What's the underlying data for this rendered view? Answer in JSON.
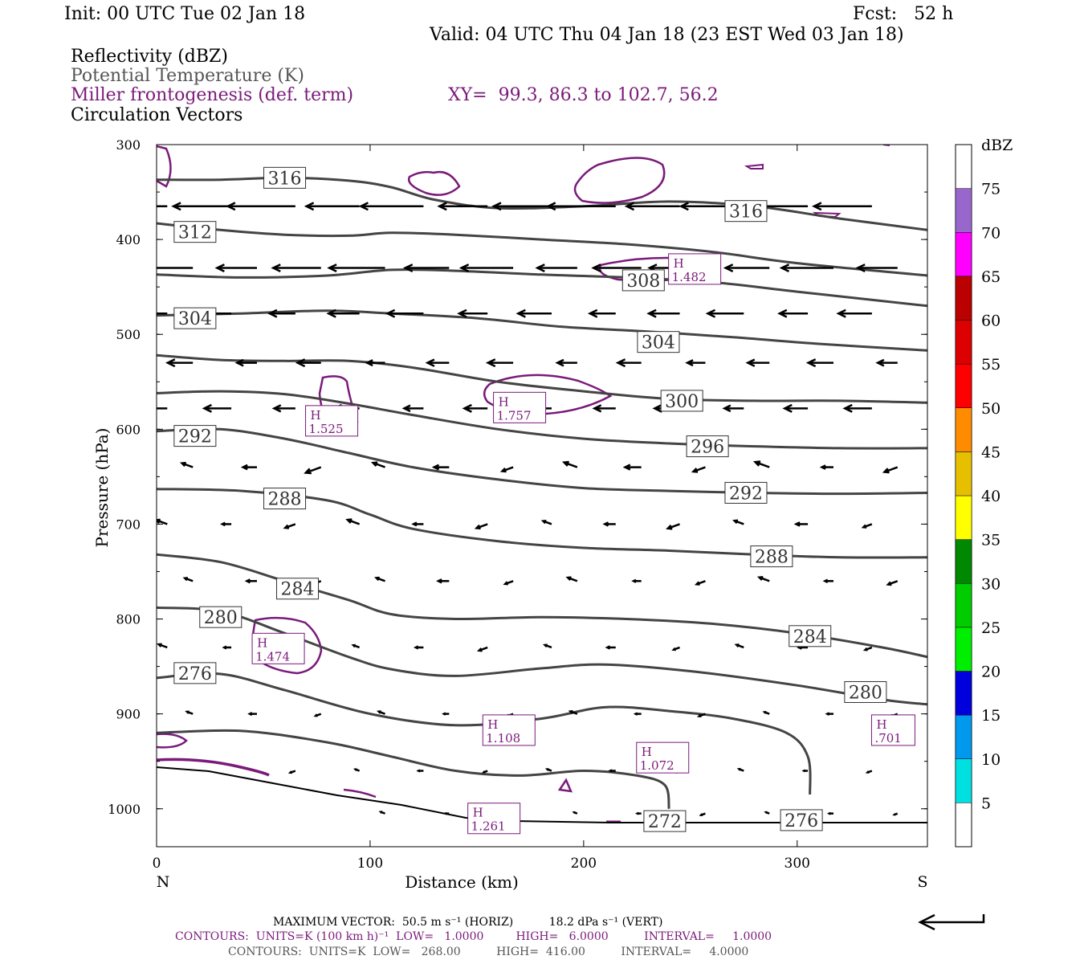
{
  "header": {
    "init": "Init: 00 UTC Tue 02 Jan 18",
    "fcst": "Fcst:   52 h",
    "valid": "Valid: 04 UTC Thu 04 Jan 18 (23 EST Wed 03 Jan 18)",
    "field1": "Reflectivity (dBZ)",
    "field2": "Potential Temperature (K)",
    "field3": "Miller frontogenesis (def. term)",
    "xy": "XY=  99.3, 86.3 to 102.7, 56.2",
    "field4": "Circulation Vectors"
  },
  "colors": {
    "theta": "#444444",
    "fronto": "#7a1a7a",
    "vector": "#000000"
  },
  "chart_data": {
    "type": "line",
    "xlabel": "Distance (km)",
    "ylabel": "Pressure (hPa)",
    "xlim": [
      0,
      361
    ],
    "ylim": [
      1040,
      300
    ],
    "x_ticks": [
      "0",
      "100",
      "200",
      "300"
    ],
    "y_ticks": [
      "300",
      "400",
      "500",
      "600",
      "700",
      "800",
      "900",
      "1000"
    ],
    "x_tick_values": [
      0,
      100,
      200,
      300
    ],
    "y_tick_values": [
      300,
      400,
      500,
      600,
      700,
      800,
      900,
      1000
    ],
    "left_end_label": "N",
    "right_end_label": "S",
    "theta_contours": [
      {
        "label": "316",
        "label_pos": [
          60,
          335
        ],
        "x": [
          0,
          30,
          60,
          90,
          110,
          130,
          160,
          200,
          240,
          280,
          320,
          361
        ],
        "y": [
          337,
          337,
          335,
          338,
          345,
          358,
          367,
          365,
          360,
          365,
          378,
          390
        ]
      },
      {
        "label": "316",
        "label_pos": [
          276,
          370
        ],
        "x": [
          0,
          30,
          60,
          90,
          110,
          130,
          160,
          200,
          240,
          280,
          320,
          361
        ],
        "y": [
          337,
          337,
          335,
          338,
          345,
          358,
          367,
          365,
          360,
          365,
          378,
          390
        ]
      },
      {
        "label": "312",
        "label_pos": [
          18,
          392
        ],
        "x": [
          0,
          30,
          60,
          90,
          110,
          140,
          180,
          220,
          260,
          300,
          361
        ],
        "y": [
          383,
          390,
          395,
          396,
          393,
          395,
          400,
          405,
          413,
          425,
          438
        ]
      },
      {
        "label": "308",
        "label_pos": [
          228,
          443
        ],
        "x": [
          0,
          40,
          80,
          110,
          140,
          180,
          220,
          260,
          300,
          361
        ],
        "y": [
          437,
          440,
          438,
          432,
          433,
          437,
          440,
          445,
          455,
          470
        ]
      },
      {
        "label": "304",
        "label_pos": [
          18,
          483
        ],
        "x": [
          0,
          40,
          80,
          110,
          150,
          190,
          230,
          270,
          310,
          361
        ],
        "y": [
          480,
          478,
          475,
          478,
          483,
          492,
          497,
          503,
          510,
          517
        ]
      },
      {
        "label": "304",
        "label_pos": [
          235,
          508
        ],
        "x": [
          0,
          40,
          80,
          110,
          150,
          190,
          230,
          270,
          310,
          361
        ],
        "y": [
          480,
          478,
          475,
          478,
          483,
          492,
          497,
          503,
          510,
          517
        ]
      },
      {
        "label": "300",
        "label_pos": [
          246,
          570
        ],
        "x": [
          0,
          30,
          60,
          90,
          120,
          160,
          200,
          240,
          280,
          320,
          361
        ],
        "y": [
          522,
          527,
          528,
          528,
          535,
          550,
          560,
          568,
          570,
          570,
          572
        ]
      },
      {
        "label": "296",
        "label_pos": [
          258,
          618
        ],
        "x": [
          0,
          30,
          60,
          90,
          120,
          160,
          200,
          240,
          280,
          320,
          361
        ],
        "y": [
          562,
          560,
          563,
          573,
          585,
          600,
          610,
          615,
          618,
          620,
          620
        ]
      },
      {
        "label": "292",
        "label_pos": [
          18,
          607
        ],
        "x": [
          0,
          30,
          60,
          90,
          120,
          160,
          200,
          240,
          280,
          320,
          361
        ],
        "y": [
          602,
          600,
          610,
          625,
          640,
          653,
          662,
          665,
          667,
          668,
          667
        ]
      },
      {
        "label": "292",
        "label_pos": [
          276,
          667
        ],
        "x": [
          0,
          30,
          60,
          90,
          120,
          160,
          200,
          240,
          280,
          320,
          361
        ],
        "y": [
          602,
          600,
          610,
          625,
          640,
          653,
          662,
          665,
          667,
          668,
          667
        ]
      },
      {
        "label": "288",
        "label_pos": [
          60,
          673
        ],
        "x": [
          0,
          40,
          80,
          100,
          120,
          160,
          200,
          240,
          280,
          320,
          361
        ],
        "y": [
          663,
          665,
          675,
          690,
          705,
          718,
          725,
          728,
          732,
          735,
          735
        ]
      },
      {
        "label": "288",
        "label_pos": [
          288,
          734
        ],
        "x": [
          0,
          40,
          80,
          100,
          120,
          160,
          200,
          240,
          280,
          320,
          361
        ],
        "y": [
          663,
          665,
          675,
          690,
          705,
          718,
          725,
          728,
          732,
          735,
          735
        ]
      },
      {
        "label": "284",
        "label_pos": [
          66,
          768
        ],
        "x": [
          0,
          30,
          60,
          90,
          110,
          140,
          180,
          220,
          260,
          300,
          340,
          361
        ],
        "y": [
          732,
          740,
          760,
          780,
          795,
          800,
          798,
          800,
          805,
          815,
          830,
          840
        ]
      },
      {
        "label": "284",
        "label_pos": [
          306,
          818
        ],
        "x": [
          0,
          30,
          60,
          90,
          110,
          140,
          180,
          220,
          260,
          300,
          340,
          361
        ],
        "y": [
          732,
          740,
          760,
          780,
          795,
          800,
          798,
          800,
          805,
          815,
          830,
          840
        ]
      },
      {
        "label": "280",
        "label_pos": [
          30,
          798
        ],
        "x": [
          0,
          30,
          60,
          90,
          110,
          140,
          180,
          210,
          250,
          300,
          340,
          361
        ],
        "y": [
          788,
          792,
          815,
          840,
          853,
          860,
          852,
          848,
          855,
          870,
          885,
          890
        ]
      },
      {
        "label": "280",
        "label_pos": [
          332,
          877
        ],
        "x": [
          0,
          30,
          60,
          90,
          110,
          140,
          180,
          210,
          250,
          300,
          340,
          361
        ],
        "y": [
          788,
          792,
          815,
          840,
          853,
          860,
          852,
          848,
          855,
          870,
          885,
          890
        ]
      },
      {
        "label": "276",
        "label_pos": [
          18,
          857
        ],
        "x": [
          0,
          30,
          60,
          100,
          140,
          180,
          210,
          240,
          270,
          295,
          305,
          306
        ],
        "y": [
          862,
          858,
          875,
          900,
          912,
          905,
          893,
          897,
          905,
          920,
          945,
          985
        ]
      },
      {
        "label": "276",
        "label_pos": [
          302,
          1012
        ],
        "x": [
          0,
          30,
          60,
          100,
          140,
          180,
          210,
          240,
          270,
          295,
          305,
          306
        ],
        "y": [
          862,
          858,
          875,
          900,
          912,
          905,
          893,
          897,
          905,
          920,
          945,
          985
        ]
      },
      {
        "label": "272",
        "label_pos": [
          238,
          1013
        ],
        "x": [
          0,
          40,
          80,
          110,
          140,
          170,
          200,
          225,
          238,
          240
        ],
        "y": [
          920,
          918,
          930,
          945,
          960,
          965,
          960,
          965,
          975,
          1000
        ]
      }
    ],
    "fronto_maxima": [
      {
        "label": "H",
        "value": "1.482",
        "x": 252,
        "y": 432
      },
      {
        "label": "H",
        "value": "1.757",
        "x": 170,
        "y": 578
      },
      {
        "label": "H",
        "value": "1.525",
        "x": 82,
        "y": 592
      },
      {
        "label": "H",
        "value": "1.474",
        "x": 57,
        "y": 832
      },
      {
        "label": "H",
        "value": "1.108",
        "x": 165,
        "y": 918
      },
      {
        "label": "H",
        "value": "1.072",
        "x": 237,
        "y": 947
      },
      {
        "label": "H",
        "value": ".701",
        "x": 345,
        "y": 918
      },
      {
        "label": "H",
        "value": "1.261",
        "x": 158,
        "y": 1011
      }
    ],
    "colorbar": {
      "unit": "dBZ",
      "levels": [
        "5",
        "10",
        "15",
        "20",
        "25",
        "30",
        "35",
        "40",
        "45",
        "50",
        "55",
        "60",
        "65",
        "70",
        "75"
      ],
      "colors": [
        "#00e0e0",
        "#0099ee",
        "#0000dd",
        "#00ee00",
        "#00cc00",
        "#008800",
        "#ffff00",
        "#e6c000",
        "#ff8c00",
        "#ff0000",
        "#dd0000",
        "#bb0000",
        "#ff00ff",
        "#9966cc"
      ]
    }
  },
  "footer": {
    "line1": "MAXIMUM VECTOR:  50.5 m s⁻¹ (HORIZ)          18.2 dPa s⁻¹ (VERT)",
    "line2": "CONTOURS:  UNITS=K (100 km h)⁻¹  LOW=   1.0000         HIGH=   6.0000          INTERVAL=     1.0000",
    "line3": "CONTOURS:  UNITS=K  LOW=   268.00          HIGH=  416.00          INTERVAL=     4.0000"
  }
}
